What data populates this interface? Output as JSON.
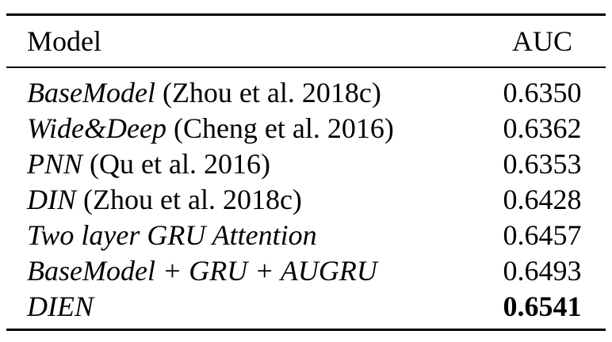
{
  "table": {
    "headers": {
      "model": "Model",
      "auc": "AUC"
    },
    "rows": [
      {
        "model": "BaseModel",
        "citation": " (Zhou et al. 2018c)",
        "auc": "0.6350"
      },
      {
        "model": "Wide&Deep",
        "citation": " (Cheng et al. 2016)",
        "auc": "0.6362"
      },
      {
        "model": "PNN",
        "citation": " (Qu et al. 2016)",
        "auc": "0.6353"
      },
      {
        "model": "DIN",
        "citation": " (Zhou et al. 2018c)",
        "auc": "0.6428"
      },
      {
        "model": "Two layer GRU Attention",
        "citation": "",
        "auc": "0.6457"
      },
      {
        "model": "BaseModel + GRU + AUGRU",
        "citation": "",
        "auc": "0.6493"
      },
      {
        "model": "DIEN",
        "citation": "",
        "auc": "0.6541"
      }
    ]
  }
}
